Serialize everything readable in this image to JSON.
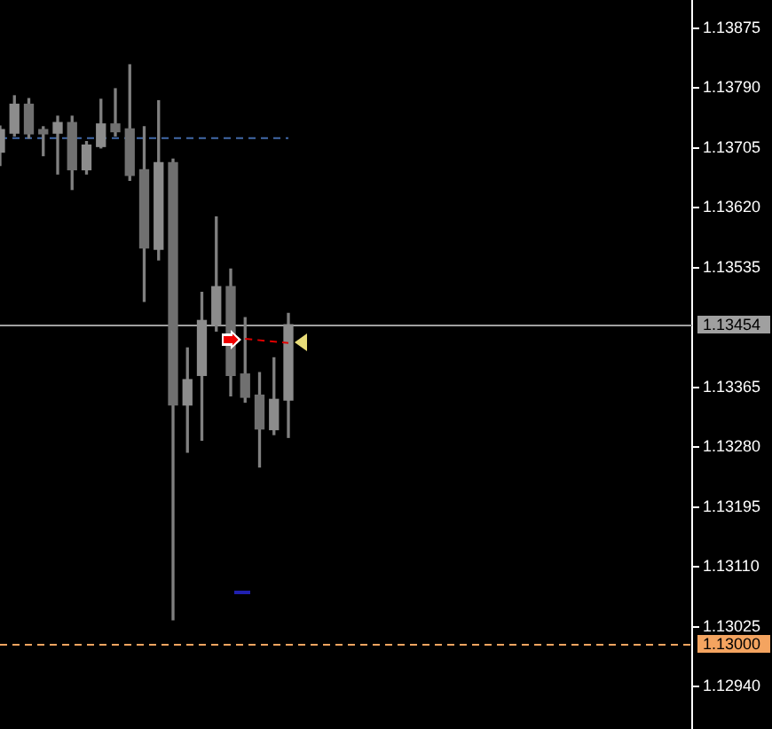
{
  "chart_data": {
    "type": "candlestick",
    "color": "#808080",
    "tick_labels": "y",
    "categories": [
      null,
      null,
      null,
      null,
      null,
      null,
      null,
      null,
      null,
      null,
      null,
      null,
      null,
      null,
      null,
      null,
      null,
      null,
      null,
      null,
      null,
      null,
      null,
      null,
      null,
      null,
      null,
      null,
      null,
      null,
      null,
      null,
      null,
      null,
      null,
      null,
      null,
      null,
      null,
      null,
      null,
      null,
      null,
      null,
      null,
      null,
      null,
      null,
      null
    ],
    "ohlc": [
      [
        1.13699,
        1.13736,
        1.1368,
        1.13731
      ],
      [
        1.13726,
        1.13779,
        1.13722,
        1.13767
      ],
      [
        1.13767,
        1.13775,
        1.13719,
        1.13725
      ],
      [
        1.13731,
        1.13735,
        1.13694,
        1.13725
      ],
      [
        1.13726,
        1.1375,
        1.13668,
        1.13741
      ],
      [
        1.13741,
        1.1375,
        1.13646,
        1.13674
      ],
      [
        1.13674,
        1.13714,
        1.13668,
        1.13709
      ],
      [
        1.13707,
        1.13774,
        1.13705,
        1.13739
      ],
      [
        1.13739,
        1.13789,
        1.13722,
        1.13728
      ],
      [
        1.13732,
        1.13823,
        1.13659,
        1.13666
      ],
      [
        1.13674,
        1.13735,
        1.13487,
        1.13563
      ],
      [
        1.13561,
        1.13772,
        1.13546,
        1.13684
      ],
      [
        1.13684,
        1.13689,
        1.13035,
        1.1334
      ],
      [
        1.1334,
        1.13421,
        1.13273,
        1.13376
      ],
      [
        1.13382,
        1.135,
        1.1329,
        1.1346
      ],
      [
        1.13454,
        1.13607,
        1.13445,
        1.13508
      ],
      [
        1.13508,
        1.13533,
        1.13353,
        1.13382
      ],
      [
        1.13384,
        1.13464,
        1.13344,
        1.13351
      ],
      [
        1.13354,
        1.13386,
        1.13252,
        1.13306
      ],
      [
        1.13305,
        1.13407,
        1.13298,
        1.13348
      ],
      [
        1.13347,
        1.1347,
        1.13294,
        1.13454
      ],
      null,
      null,
      null,
      null,
      null,
      null,
      null,
      null,
      null,
      null,
      null,
      null,
      null,
      null,
      null,
      null,
      null,
      null,
      null,
      null,
      null,
      null,
      null,
      null,
      null,
      null,
      null,
      null
    ],
    "colors": [
      "#8c8c8c",
      "#8c8c8c",
      "#707070",
      "#707070",
      "#8c8c8c",
      "#707070",
      "#8c8c8c",
      "#8c8c8c",
      "#707070",
      "#707070",
      "#707070",
      "#8c8c8c",
      "#707070",
      "#8c8c8c",
      "#8c8c8c",
      "#8c8c8c",
      "#707070",
      "#707070",
      "#707070",
      "#8c8c8c",
      "#8c8c8c",
      null,
      null,
      null,
      null,
      null,
      null,
      null,
      null,
      null,
      null,
      null,
      null,
      null,
      null,
      null,
      null,
      null,
      null,
      null,
      null,
      null,
      null,
      null,
      null,
      null,
      null,
      null,
      null
    ],
    "series": [
      {
        "type": "line",
        "color": "#4169a8",
        "line_style": "dashed",
        "values": [
          1.13719,
          1.13719,
          1.13719,
          1.13719,
          1.13719,
          1.13719,
          1.13719,
          1.13719,
          1.13719,
          1.13719,
          1.13719,
          1.13719,
          1.13719,
          1.13719,
          1.13719,
          1.13719,
          1.13719,
          1.13719,
          1.13719,
          1.13719,
          1.13719,
          null,
          null,
          null,
          null,
          null,
          null,
          null,
          null,
          null,
          null,
          null,
          null,
          null,
          null,
          null,
          null,
          null,
          null,
          null,
          null,
          null,
          null,
          null,
          null,
          null,
          null,
          null,
          null
        ]
      },
      {
        "type": "line",
        "color": "#e00000",
        "line_style": "dashed",
        "values": [
          null,
          null,
          null,
          null,
          null,
          null,
          null,
          null,
          null,
          null,
          null,
          null,
          null,
          null,
          null,
          null,
          null,
          1.13434,
          null,
          null,
          1.13428,
          null,
          null,
          null,
          null,
          null,
          null,
          null,
          null,
          null,
          null,
          null,
          null,
          null,
          null,
          null,
          null,
          null,
          null,
          null,
          null,
          null,
          null,
          null,
          null,
          null,
          null,
          null,
          null
        ]
      }
    ],
    "ylim": [
      1.1288,
      1.13915
    ],
    "yticks": [
      1.13875,
      {
        "value": 1.1379,
        "label": "1.13790"
      },
      1.13705,
      {
        "value": 1.1362,
        "label": "1.13620"
      },
      1.13535,
      1.13365,
      {
        "value": 1.1328,
        "label": "1.13280"
      },
      1.13195,
      {
        "value": 1.1311,
        "label": "1.13110"
      },
      1.13025,
      {
        "value": 1.1294,
        "label": "1.12940"
      }
    ],
    "ref_lines": [
      {
        "axis": "y",
        "value": 1.13454,
        "label": "1.13454",
        "color": "#a0a0a0"
      },
      {
        "axis": "y",
        "value": 1.13,
        "label": "1.13000",
        "color": "#f4a460",
        "line_style": "dashed"
      }
    ]
  }
}
